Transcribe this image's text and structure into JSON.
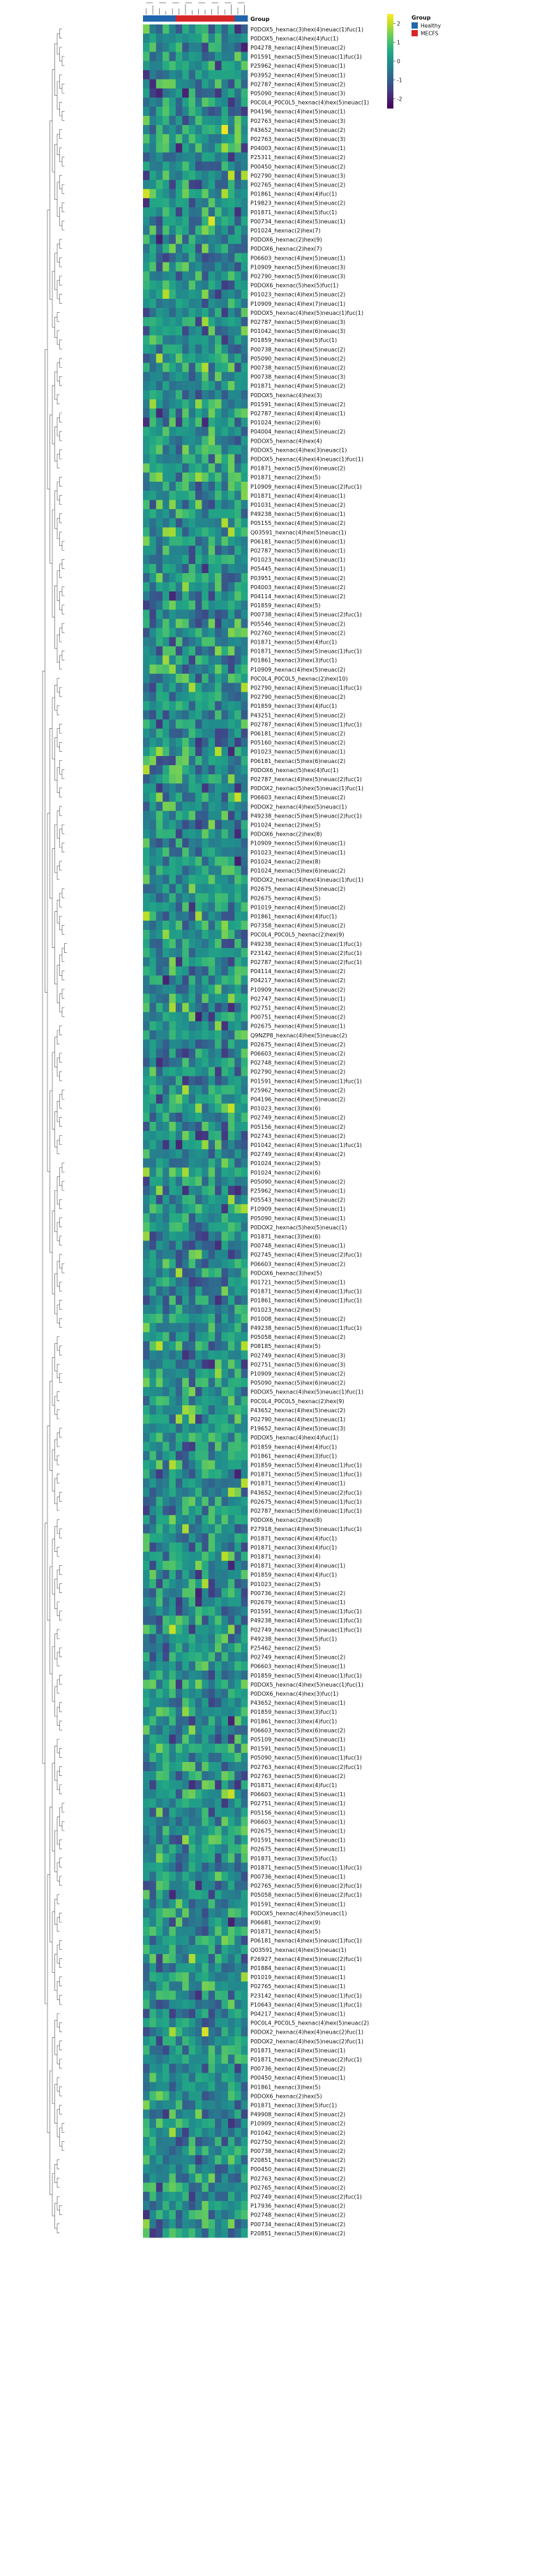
{
  "chart_data": {
    "type": "heatmap",
    "annotation_track": {
      "label": "Group",
      "columns": [
        "Healthy",
        "Healthy",
        "Healthy",
        "Healthy",
        "Healthy",
        "MECFS",
        "MECFS",
        "MECFS",
        "MECFS",
        "MECFS",
        "MECFS",
        "MECFS",
        "MECFS",
        "MECFS",
        "Healthy",
        "Healthy"
      ]
    },
    "legend": {
      "title": "Group",
      "entries": [
        {
          "name": "Healthy",
          "color": "#2166ac"
        },
        {
          "name": "MECFS",
          "color": "#d62728"
        }
      ]
    },
    "colorbar": {
      "ticks": [
        2,
        1,
        0,
        -1,
        -2
      ],
      "range": [
        -2.5,
        2.5
      ],
      "colormap": "viridis"
    },
    "rows": [
      "P0DOX5_hexnac(3)hex(4)neuac(1)fuc(1)",
      "P0DOX5_hexnac(4)hex(4)fuc(1)",
      "P04278_hexnac(4)hex(5)neuac(2)",
      "P01591_hexnac(5)hex(5)neuac(1)fuc(1)",
      "P25962_hexnac(4)hex(5)neuac(1)",
      "P03952_hexnac(4)hex(5)neuac(1)",
      "P02787_hexnac(4)hex(5)neuac(2)",
      "P05090_hexnac(4)hex(5)neuac(3)",
      "P0C0L4_P0C0L5_hexnac(4)hex(5)neuac(1)",
      "P04196_hexnac(4)hex(5)neuac(1)",
      "P02763_hexnac(4)hex(5)neuac(3)",
      "P43652_hexnac(4)hex(5)neuac(2)",
      "P02763_hexnac(5)hex(6)neuac(3)",
      "P04003_hexnac(4)hex(5)neuac(1)",
      "P25311_hexnac(4)hex(5)neuac(2)",
      "P00450_hexnac(4)hex(5)neuac(2)",
      "P02790_hexnac(4)hex(5)neuac(3)",
      "P02765_hexnac(4)hex(5)neuac(2)",
      "P01861_hexnac(4)hex(4)fuc(1)",
      "P19823_hexnac(4)hex(5)neuac(2)",
      "P01871_hexnac(4)hex(5)fuc(1)",
      "P00734_hexnac(4)hex(5)neuac(1)",
      "P01024_hexnac(2)hex(7)",
      "P0DOX6_hexnac(2)hex(9)",
      "P0DOX6_hexnac(2)hex(7)",
      "P06603_hexnac(4)hex(5)neuac(1)",
      "P10909_hexnac(5)hex(6)neuac(3)",
      "P02790_hexnac(5)hex(6)neuac(3)",
      "P0DOX6_hexnac(5)hex(5)fuc(1)",
      "P01023_hexnac(4)hex(5)neuac(2)",
      "P10909_hexnac(4)hex(7)neuac(1)",
      "P0DOX5_hexnac(4)hex(5)neuac(1)fuc(1)",
      "P02787_hexnac(5)hex(6)neuac(3)",
      "P01042_hexnac(5)hex(6)neuac(3)",
      "P01859_hexnac(4)hex(5)fuc(1)",
      "P00738_hexnac(4)hex(5)neuac(2)",
      "P05090_hexnac(4)hex(5)neuac(2)",
      "P00738_hexnac(5)hex(6)neuac(2)",
      "P00738_hexnac(4)hex(5)neuac(3)",
      "P01871_hexnac(4)hex(5)neuac(2)",
      "P0DOX5_hexnac(4)hex(3)",
      "P01591_hexnac(4)hex(5)neuac(2)",
      "P02787_hexnac(4)hex(4)neuac(1)",
      "P01024_hexnac(2)hex(6)",
      "P04004_hexnac(4)hex(5)neuac(2)",
      "P0DOX5_hexnac(4)hex(4)",
      "P0DOX5_hexnac(4)hex(3)neuac(1)",
      "P0DOX5_hexnac(4)hex(4)neuac(1)fuc(1)",
      "P01871_hexnac(5)hex(6)neuac(2)",
      "P01871_hexnac(2)hex(5)",
      "P10909_hexnac(4)hex(5)neuac(2)fuc(1)",
      "P01871_hexnac(4)hex(4)neuac(1)",
      "P01031_hexnac(4)hex(5)neuac(2)",
      "P49238_hexnac(5)hex(6)neuac(1)",
      "P05155_hexnac(4)hex(5)neuac(2)",
      "Q03591_hexnac(4)hex(5)neuac(1)",
      "P06181_hexnac(5)hex(6)neuac(1)",
      "P02787_hexnac(5)hex(6)neuac(1)",
      "P01023_hexnac(4)hex(5)neuac(1)",
      "P05445_hexnac(4)hex(5)neuac(1)",
      "P03951_hexnac(4)hex(5)neuac(2)",
      "P04003_hexnac(4)hex(5)neuac(2)",
      "P04114_hexnac(4)hex(5)neuac(2)",
      "P01859_hexnac(4)hex(5)",
      "P00738_hexnac(4)hex(5)neuac(2)fuc(1)",
      "P05546_hexnac(4)hex(5)neuac(2)",
      "P02760_hexnac(4)hex(5)neuac(2)",
      "P01871_hexnac(5)hex(4)fuc(1)",
      "P01871_hexnac(5)hex(5)neuac(1)fuc(1)",
      "P01861_hexnac(3)hex(3)fuc(1)",
      "P10909_hexnac(4)hex(5)neuac(2)",
      "P0C0L4_P0C0L5_hexnac(2)hex(10)",
      "P02790_hexnac(4)hex(5)neuac(1)fuc(1)",
      "P02790_hexnac(5)hex(6)neuac(2)",
      "P01859_hexnac(3)hex(4)fuc(1)",
      "P43251_hexnac(4)hex(5)neuac(2)",
      "P02787_hexnac(4)hex(5)neuac(1)fuc(1)",
      "P06181_hexnac(4)hex(5)neuac(2)",
      "P05160_hexnac(4)hex(5)neuac(2)",
      "P01023_hexnac(5)hex(6)neuac(1)",
      "P06181_hexnac(5)hex(6)neuac(2)",
      "P0DOX6_hexnac(5)hex(4)fuc(1)",
      "P02787_hexnac(4)hex(5)neuac(2)fuc(1)",
      "P0DOX2_hexnac(5)hex(5)neuac(1)fuc(1)",
      "P06603_hexnac(4)hex(5)neuac(2)",
      "P0DOX2_hexnac(4)hex(5)neuac(1)",
      "P49238_hexnac(5)hex(5)neuac(2)fuc(1)",
      "P01024_hexnac(2)hex(5)",
      "P0DOX6_hexnac(2)hex(8)",
      "P10909_hexnac(5)hex(6)neuac(1)",
      "P01023_hexnac(4)hex(5)neuac(1)",
      "P01024_hexnac(2)hex(8)",
      "P01024_hexnac(5)hex(6)neuac(2)",
      "P0DOX2_hexnac(4)hex(4)neuac(1)fuc(1)",
      "P02675_hexnac(4)hex(5)neuac(2)",
      "P02675_hexnac(4)hex(5)",
      "P01019_hexnac(4)hex(5)neuac(2)",
      "P01861_hexnac(4)hex(4)fuc(1)",
      "P07358_hexnac(4)hex(5)neuac(2)",
      "P0C0L4_P0C0L5_hexnac(2)hex(9)",
      "P49238_hexnac(4)hex(5)neuac(1)fuc(1)",
      "P23142_hexnac(4)hex(5)neuac(2)fuc(1)",
      "P02787_hexnac(4)hex(5)neuac(2)fuc(1)",
      "P04114_hexnac(4)hex(5)neuac(2)",
      "P04217_hexnac(4)hex(5)neuac(2)",
      "P10909_hexnac(4)hex(5)neuac(2)",
      "P02747_hexnac(4)hex(5)neuac(1)",
      "P02751_hexnac(4)hex(5)neuac(2)",
      "P00751_hexnac(4)hex(5)neuac(2)",
      "P02675_hexnac(4)hex(5)neuac(1)",
      "Q9NZP8_hexnac(4)hex(5)neuac(2)",
      "P02675_hexnac(4)hex(5)neuac(2)",
      "P06603_hexnac(4)hex(5)neuac(2)",
      "P02748_hexnac(4)hex(5)neuac(2)",
      "P02790_hexnac(4)hex(5)neuac(2)",
      "P01591_hexnac(4)hex(5)neuac(1)fuc(1)",
      "P25962_hexnac(4)hex(5)neuac(2)",
      "P04196_hexnac(4)hex(5)neuac(2)",
      "P01023_hexnac(3)hex(6)",
      "P02749_hexnac(4)hex(5)neuac(2)",
      "P05156_hexnac(4)hex(5)neuac(2)",
      "P02743_hexnac(4)hex(5)neuac(2)",
      "P01042_hexnac(4)hex(5)neuac(1)fuc(1)",
      "P02749_hexnac(4)hex(4)neuac(2)",
      "P01024_hexnac(2)hex(5)",
      "P01024_hexnac(2)hex(6)",
      "P05090_hexnac(4)hex(5)neuac(2)",
      "P25962_hexnac(4)hex(5)neuac(1)",
      "P05543_hexnac(4)hex(5)neuac(2)",
      "P10909_hexnac(4)hex(5)neuac(1)",
      "P05090_hexnac(4)hex(5)neuac(1)",
      "P0DOX2_hexnac(5)hex(5)neuac(1)",
      "P01871_hexnac(3)hex(6)",
      "P00748_hexnac(4)hex(5)neuac(1)",
      "P02745_hexnac(4)hex(5)neuac(2)fuc(1)",
      "P06603_hexnac(4)hex(5)neuac(2)",
      "P0DOX6_hexnac(3)hex(5)",
      "P01721_hexnac(5)hex(5)neuac(1)",
      "P01871_hexnac(5)hex(4)neuac(1)fuc(1)",
      "P01861_hexnac(4)hex(5)neuac(1)fuc(1)",
      "P01023_hexnac(2)hex(5)",
      "P01008_hexnac(4)hex(5)neuac(2)",
      "P49238_hexnac(5)hex(6)neuac(1)fuc(1)",
      "P05058_hexnac(4)hex(5)neuac(2)",
      "P08185_hexnac(4)hex(5)",
      "P02749_hexnac(4)hex(5)neuac(3)",
      "P02751_hexnac(5)hex(6)neuac(3)",
      "P10909_hexnac(4)hex(5)neuac(2)",
      "P05090_hexnac(5)hex(6)neuac(2)",
      "P0DOX5_hexnac(4)hex(5)neuac(1)fuc(1)",
      "P0C0L4_P0C0L5_hexnac(2)hex(9)",
      "P43652_hexnac(4)hex(5)neuac(2)",
      "P02790_hexnac(4)hex(5)neuac(1)",
      "P19652_hexnac(4)hex(5)neuac(3)",
      "P0DOX5_hexnac(4)hex(4)fuc(1)",
      "P01859_hexnac(4)hex(4)fuc(1)",
      "P01861_hexnac(4)hex(3)fuc(1)",
      "P01859_hexnac(5)hex(4)neuac(1)fuc(1)",
      "P01871_hexnac(5)hex(5)neuac(1)fuc(1)",
      "P01871_hexnac(5)hex(4)neuac(1)",
      "P43652_hexnac(4)hex(5)neuac(2)fuc(1)",
      "P02675_hexnac(4)hex(5)neuac(1)fuc(1)",
      "P02787_hexnac(5)hex(6)neuac(1)fuc(1)",
      "P0DOX6_hexnac(2)hex(8)",
      "P27918_hexnac(4)hex(5)neuac(1)fuc(1)",
      "P01871_hexnac(4)hex(4)fuc(1)",
      "P01871_hexnac(3)hex(4)fuc(1)",
      "P01871_hexnac(3)hex(4)",
      "P01871_hexnac(3)hex(4)neuac(1)",
      "P01859_hexnac(4)hex(4)fuc(1)",
      "P01023_hexnac(2)hex(5)",
      "P00736_hexnac(4)hex(5)neuac(2)",
      "P02679_hexnac(4)hex(5)neuac(1)",
      "P01591_hexnac(4)hex(5)neuac(1)fuc(1)",
      "P49238_hexnac(4)hex(5)neuac(1)fuc(1)",
      "P02749_hexnac(4)hex(5)neuac(1)fuc(1)",
      "P49238_hexnac(3)hex(5)fuc(1)",
      "P25462_hexnac(2)hex(5)",
      "P02749_hexnac(4)hex(5)neuac(2)",
      "P06603_hexnac(4)hex(5)neuac(1)",
      "P01859_hexnac(5)hex(4)neuac(1)fuc(1)",
      "P0DOX5_hexnac(4)hex(5)neuac(1)fuc(1)",
      "P0DOX6_hexnac(4)hex(3)fuc(1)",
      "P43652_hexnac(4)hex(5)neuac(1)",
      "P01859_hexnac(3)hex(3)fuc(1)",
      "P01861_hexnac(3)hex(4)fuc(1)",
      "P06603_hexnac(5)hex(6)neuac(2)",
      "P05109_hexnac(4)hex(5)neuac(1)",
      "P01591_hexnac(5)hex(5)neuac(1)",
      "P05090_hexnac(5)hex(6)neuac(1)fuc(1)",
      "P02763_hexnac(4)hex(5)neuac(2)fuc(1)",
      "P02763_hexnac(5)hex(6)neuac(2)",
      "P01871_hexnac(4)hex(4)fuc(1)",
      "P06603_hexnac(4)hex(5)neuac(1)",
      "P02751_hexnac(4)hex(5)neuac(1)",
      "P05156_hexnac(4)hex(5)neuac(1)",
      "P06603_hexnac(4)hex(5)neuac(1)",
      "P02675_hexnac(4)hex(5)neuac(1)",
      "P01591_hexnac(4)hex(5)neuac(1)",
      "P02675_hexnac(4)hex(5)neuac(1)",
      "P01871_hexnac(3)hex(5)fuc(1)",
      "P01871_hexnac(5)hex(5)neuac(1)fuc(1)",
      "P00736_hexnac(4)hex(5)neuac(1)",
      "P02765_hexnac(5)hex(6)neuac(2)fuc(1)",
      "P05058_hexnac(5)hex(6)neuac(2)fuc(1)",
      "P01591_hexnac(4)hex(5)neuac(1)",
      "P0DOX5_hexnac(4)hex(5)neuac(1)",
      "P06681_hexnac(2)hex(9)",
      "P01871_hexnac(4)hex(5)",
      "P06181_hexnac(4)hex(5)neuac(1)fuc(1)",
      "Q03591_hexnac(4)hex(5)neuac(1)",
      "P26927_hexnac(4)hex(5)neuac(2)fuc(1)",
      "P01884_hexnac(4)hex(5)neuac(1)",
      "P01019_hexnac(4)hex(5)neuac(1)",
      "P02765_hexnac(4)hex(5)neuac(1)",
      "P23142_hexnac(4)hex(5)neuac(1)fuc(1)",
      "P10643_hexnac(4)hex(5)neuac(1)fuc(1)",
      "P04217_hexnac(4)hex(5)neuac(1)",
      "P0C0L4_P0C0L5_hexnac(4)hex(5)neuac(2)",
      "P0DOX2_hexnac(4)hex(4)neuac(2)fuc(1)",
      "P0DOX2_hexnac(4)hex(5)neuac(2)fuc(1)",
      "P01871_hexnac(4)hex(5)neuac(1)",
      "P01871_hexnac(5)hex(5)neuac(2)fuc(1)",
      "P00736_hexnac(4)hex(5)neuac(2)",
      "P00450_hexnac(4)hex(5)neuac(1)",
      "P01861_hexnac(3)hex(5)",
      "P0DOX6_hexnac(2)hex(5)",
      "P01871_hexnac(3)hex(5)fuc(1)",
      "P49908_hexnac(4)hex(5)neuac(2)",
      "P10909_hexnac(4)hex(5)neuac(2)",
      "P01042_hexnac(4)hex(5)neuac(2)",
      "P02750_hexnac(4)hex(5)neuac(2)",
      "P00738_hexnac(4)hex(5)neuac(2)",
      "P20851_hexnac(4)hex(5)neuac(2)",
      "P00450_hexnac(4)hex(5)neuac(2)",
      "P02763_hexnac(4)hex(5)neuac(2)",
      "P02765_hexnac(4)hex(5)neuac(2)",
      "P02749_hexnac(4)hex(5)neuac(2)fuc(1)",
      "P17936_hexnac(4)hex(5)neuac(2)",
      "P02748_hexnac(4)hex(5)neuac(2)",
      "P00734_hexnac(4)hex(5)neuac(2)",
      "P20851_hexnac(5)hex(6)neuac(2)"
    ]
  }
}
